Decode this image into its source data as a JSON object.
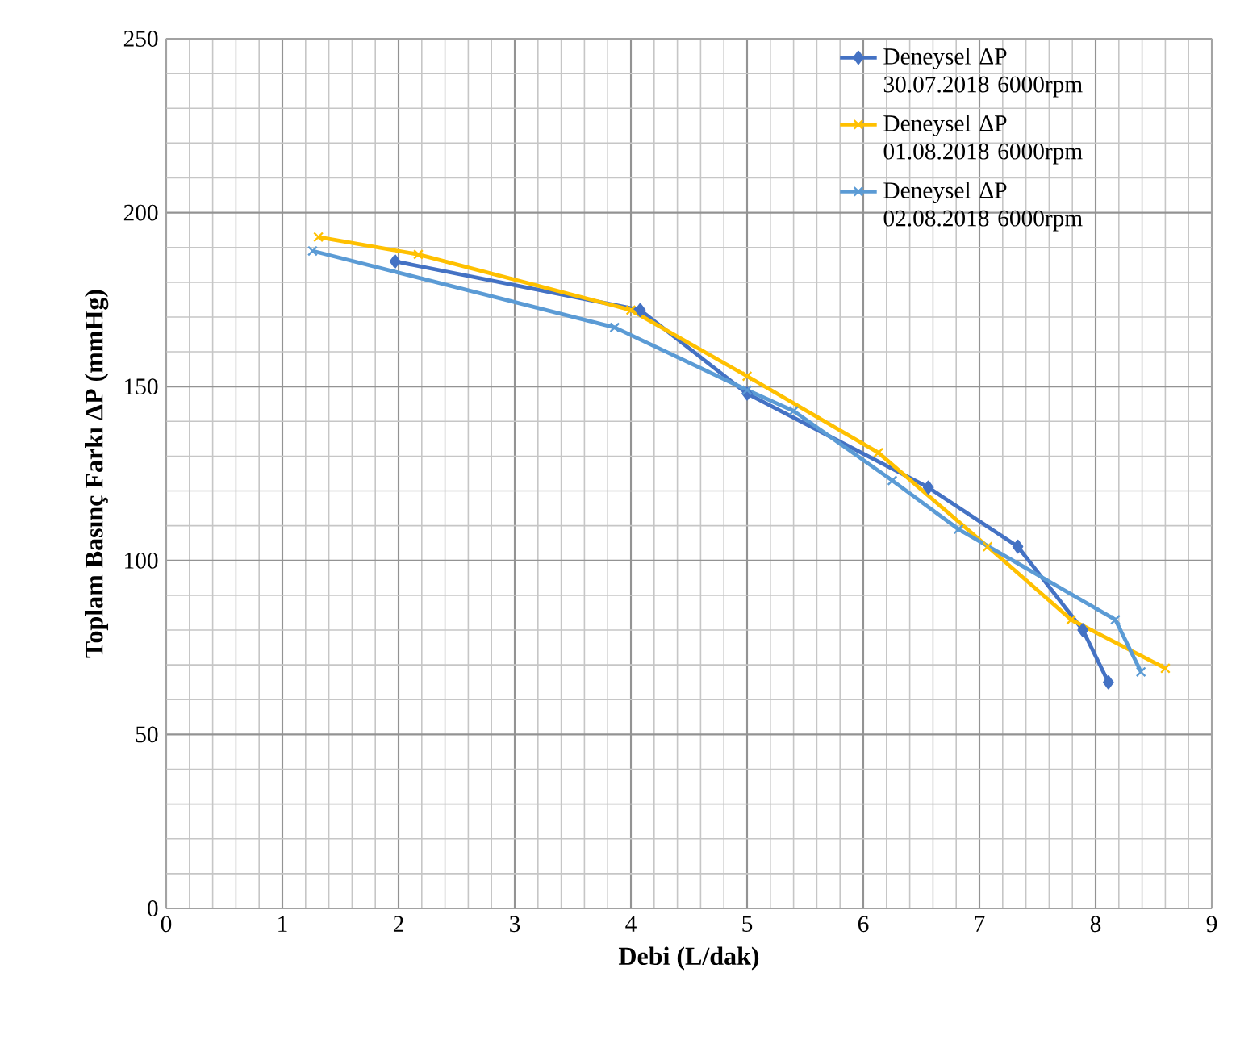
{
  "chart_data": {
    "type": "line",
    "xlabel": "Debi (L/dak)",
    "ylabel": "Toplam Basınç Farkı ΔP (mmHg)",
    "xlim": [
      0,
      9
    ],
    "ylim": [
      0,
      250
    ],
    "xticks": [
      0,
      1,
      2,
      3,
      4,
      5,
      6,
      7,
      8,
      9
    ],
    "yticks": [
      0,
      50,
      100,
      150,
      200,
      250
    ],
    "grid": true,
    "legend": "top right",
    "line_style": "solid",
    "series": [
      {
        "name": "Deneysel ΔP 30.07.2018 6000rpm",
        "color": "#4472c4",
        "marker": "diamond",
        "x": [
          1.97,
          4.08,
          5.0,
          6.56,
          7.33,
          7.89,
          8.11
        ],
        "values": [
          186,
          172,
          148,
          121,
          104,
          80,
          65
        ]
      },
      {
        "name": "Deneysel ΔP 01.08.2018 6000rpm",
        "color": "#ffc000",
        "marker": "cross",
        "x": [
          1.31,
          2.17,
          4.0,
          5.0,
          6.13,
          7.07,
          7.79,
          8.6
        ],
        "values": [
          193,
          188,
          172,
          153,
          131,
          104,
          83,
          69
        ]
      },
      {
        "name": "Deneysel ΔP 02.08.2018 6000rpm",
        "color": "#5b9bd5",
        "marker": "cross",
        "x": [
          1.26,
          3.86,
          5.0,
          5.4,
          6.25,
          6.82,
          8.17,
          8.39
        ],
        "values": [
          189,
          167,
          149,
          143,
          123,
          109,
          83,
          68
        ]
      }
    ]
  }
}
